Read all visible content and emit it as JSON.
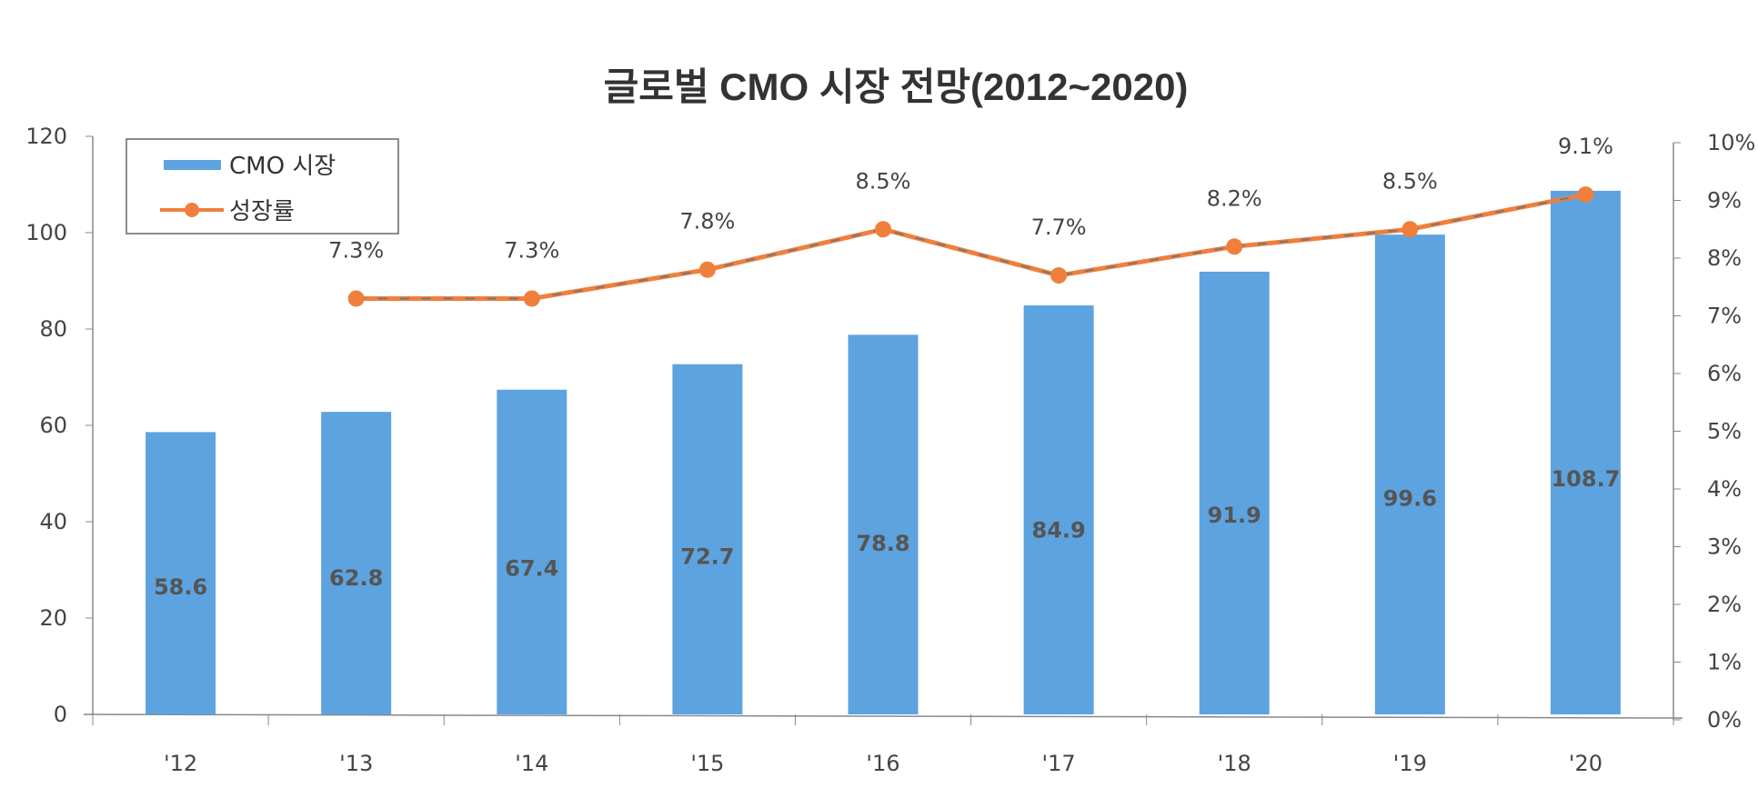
{
  "chart_data": {
    "type": "bar+line",
    "title": "글로벌 CMO 시장 전망(2012~2020)",
    "categories": [
      "'12",
      "'13",
      "'14",
      "'15",
      "'16",
      "'17",
      "'18",
      "'19",
      "'20"
    ],
    "series": [
      {
        "name": "CMO 시장",
        "type": "bar",
        "axis": "left",
        "color": "#5DA3E0",
        "values": [
          58.6,
          62.8,
          67.4,
          72.7,
          78.8,
          84.9,
          91.9,
          99.6,
          108.7
        ],
        "labels": [
          "58.6",
          "62.8",
          "67.4",
          "72.7",
          "78.8",
          "84.9",
          "91.9",
          "99.6",
          "108.7"
        ]
      },
      {
        "name": "성장률",
        "type": "line",
        "axis": "right",
        "color": "#F07F3C",
        "values": [
          null,
          7.3,
          7.3,
          7.8,
          8.5,
          7.7,
          8.2,
          8.5,
          9.1
        ],
        "labels": [
          "",
          "7.3%",
          "7.3%",
          "7.8%",
          "8.5%",
          "7.7%",
          "8.2%",
          "8.5%",
          "9.1%"
        ]
      }
    ],
    "y_left": {
      "range": [
        0,
        120
      ],
      "ticks": [
        "0",
        "20",
        "40",
        "60",
        "80",
        "100",
        "120"
      ]
    },
    "y_right": {
      "range": [
        0,
        10
      ],
      "unit": "%",
      "ticks": [
        "0%",
        "1%",
        "2%",
        "3%",
        "4%",
        "5%",
        "6%",
        "7%",
        "8%",
        "9%",
        "10%"
      ]
    },
    "grid": false,
    "legend": "top-left"
  }
}
